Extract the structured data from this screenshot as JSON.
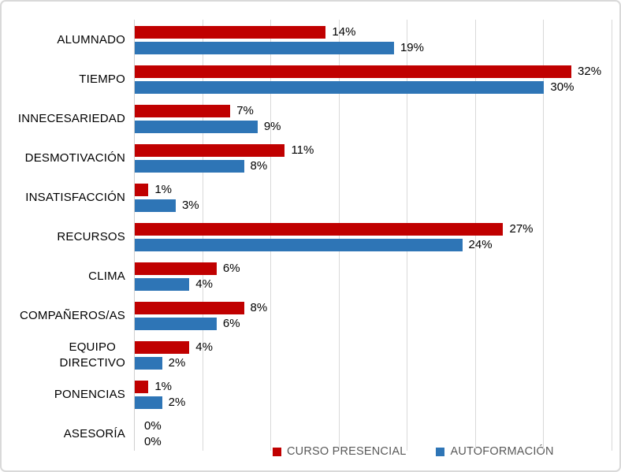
{
  "chart_data": {
    "type": "bar",
    "orientation": "horizontal",
    "title": "",
    "xlabel": "",
    "ylabel": "",
    "xlim": [
      0,
      35
    ],
    "gridline_interval_pct": 5,
    "grid": true,
    "legend_position": "bottom",
    "data_labels": true,
    "value_suffix": "%",
    "categories": [
      "ALUMNADO",
      "TIEMPO",
      "INNECESARIEDAD",
      "DESMOTIVACIÓN",
      "INSATISFACCIÓN",
      "RECURSOS",
      "CLIMA",
      "COMPAÑEROS/AS",
      "EQUIPO\nDIRECTIVO",
      "PONENCIAS",
      "ASESORÍA"
    ],
    "series": [
      {
        "name": "CURSO PRESENCIAL",
        "color": "#c00000",
        "values": [
          14,
          32,
          7,
          11,
          1,
          27,
          6,
          8,
          4,
          1,
          0
        ],
        "labels": [
          "14%",
          "32%",
          "7%",
          "11%",
          "1%",
          "27%",
          "6%",
          "8%",
          "4%",
          "1%",
          "0%"
        ]
      },
      {
        "name": "AUTOFORMACIÓN",
        "color": "#2e75b6",
        "values": [
          19,
          30,
          9,
          8,
          3,
          24,
          4,
          6,
          2,
          2,
          0
        ],
        "labels": [
          "19%",
          "30%",
          "9%",
          "8%",
          "3%",
          "24%",
          "4%",
          "6%",
          "2%",
          "2%",
          "0%"
        ]
      }
    ],
    "colors": {
      "gridline": "#d9d9d9",
      "axis_line": "#cfcfcf",
      "category_text": "#000000",
      "data_label_text": "#000000",
      "legend_text": "#595959",
      "frame_border": "#d9d9d9",
      "background": "#ffffff"
    }
  }
}
